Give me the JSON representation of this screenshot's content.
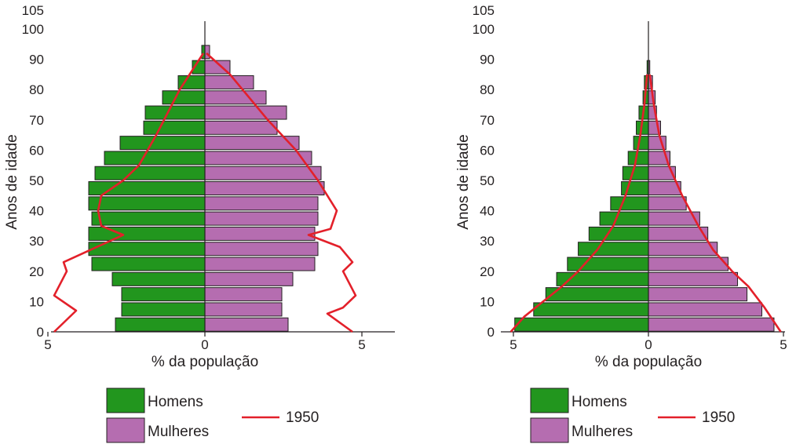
{
  "colors": {
    "men": "#22961e",
    "women": "#b56db0",
    "line_1950": "#e3202a",
    "axis": "#231f20"
  },
  "chart_data": [
    {
      "type": "bar",
      "orientation": "horizontal population pyramid",
      "xlabel": "% da população",
      "ylabel": "Anos de idade",
      "x_ticks": [
        "5",
        "0",
        "5"
      ],
      "y_ticks": [
        "0",
        "10",
        "20",
        "30",
        "40",
        "50",
        "60",
        "70",
        "80",
        "90",
        "100",
        "105"
      ],
      "xlim": [
        -5,
        5
      ],
      "ylim": [
        0,
        105
      ],
      "age_groups": [
        "0-4",
        "5-9",
        "10-14",
        "15-19",
        "20-24",
        "25-29",
        "30-34",
        "35-39",
        "40-44",
        "45-49",
        "50-54",
        "55-59",
        "60-64",
        "65-69",
        "70-74",
        "75-79",
        "80-84",
        "85-89",
        "90-94"
      ],
      "series": [
        {
          "name": "Homens",
          "values": [
            2.85,
            2.65,
            2.65,
            2.95,
            3.6,
            3.7,
            3.7,
            3.6,
            3.7,
            3.7,
            3.5,
            3.2,
            2.7,
            1.95,
            1.9,
            1.35,
            0.85,
            0.4,
            0.1
          ]
        },
        {
          "name": "Mulheres",
          "values": [
            2.65,
            2.45,
            2.45,
            2.8,
            3.5,
            3.6,
            3.5,
            3.6,
            3.6,
            3.8,
            3.7,
            3.4,
            3.0,
            2.3,
            2.6,
            1.95,
            1.55,
            0.8,
            0.15
          ]
        },
        {
          "name": "1950",
          "men_points": [
            [
              4.8,
              0
            ],
            [
              4.1,
              7
            ],
            [
              4.8,
              12
            ],
            [
              4.4,
              20
            ],
            [
              4.5,
              23
            ],
            [
              2.6,
              32
            ],
            [
              3.3,
              35
            ],
            [
              3.4,
              40
            ],
            [
              3.3,
              45
            ],
            [
              2.6,
              50
            ],
            [
              2.1,
              55
            ],
            [
              1.55,
              65
            ],
            [
              0.8,
              80
            ],
            [
              0.05,
              92
            ]
          ],
          "women_points": [
            [
              0.05,
              92
            ],
            [
              0.8,
              85
            ],
            [
              2.0,
              70
            ],
            [
              2.9,
              60
            ],
            [
              3.6,
              50
            ],
            [
              4.2,
              40
            ],
            [
              4.0,
              34
            ],
            [
              3.3,
              32
            ],
            [
              4.3,
              28
            ],
            [
              4.7,
              23
            ],
            [
              4.4,
              20
            ],
            [
              4.8,
              12
            ],
            [
              4.4,
              8
            ],
            [
              3.9,
              6
            ],
            [
              4.7,
              0
            ]
          ]
        }
      ],
      "legend": [
        "Homens",
        "Mulheres",
        "1950"
      ],
      "legend_position": "bottom"
    },
    {
      "type": "bar",
      "orientation": "horizontal population pyramid",
      "xlabel": "% da população",
      "ylabel": "Anos de idade",
      "x_ticks": [
        "5",
        "0",
        "5"
      ],
      "y_ticks": [
        "0",
        "10",
        "20",
        "30",
        "40",
        "50",
        "60",
        "70",
        "80",
        "90",
        "100",
        "105"
      ],
      "xlim": [
        -5,
        5
      ],
      "ylim": [
        0,
        105
      ],
      "age_groups": [
        "0-4",
        "5-9",
        "10-14",
        "15-19",
        "20-24",
        "25-29",
        "30-34",
        "35-39",
        "40-44",
        "45-49",
        "50-54",
        "55-59",
        "60-64",
        "65-69",
        "70-74",
        "75-79",
        "80-84",
        "85-89"
      ],
      "series": [
        {
          "name": "Homens",
          "values": [
            4.95,
            4.25,
            3.8,
            3.4,
            3.0,
            2.6,
            2.2,
            1.8,
            1.4,
            1.0,
            0.95,
            0.75,
            0.55,
            0.45,
            0.35,
            0.2,
            0.15,
            0.05
          ]
        },
        {
          "name": "Mulheres",
          "values": [
            4.65,
            4.2,
            3.65,
            3.3,
            2.95,
            2.55,
            2.2,
            1.9,
            1.4,
            1.2,
            1.0,
            0.8,
            0.65,
            0.45,
            0.3,
            0.25,
            0.15,
            0.05
          ]
        },
        {
          "name": "1950",
          "men_points": [
            [
              5.1,
              0
            ],
            [
              4.6,
              5
            ],
            [
              3.9,
              10
            ],
            [
              3.2,
              15
            ],
            [
              2.6,
              20
            ],
            [
              1.9,
              27
            ],
            [
              1.3,
              35
            ],
            [
              0.85,
              45
            ],
            [
              0.5,
              55
            ],
            [
              0.3,
              65
            ],
            [
              0.15,
              75
            ],
            [
              0.05,
              85
            ]
          ],
          "women_points": [
            [
              0.05,
              85
            ],
            [
              0.2,
              75
            ],
            [
              0.4,
              65
            ],
            [
              0.75,
              55
            ],
            [
              1.25,
              45
            ],
            [
              1.85,
              35
            ],
            [
              2.4,
              27
            ],
            [
              3.1,
              20
            ],
            [
              3.7,
              15
            ],
            [
              4.3,
              8
            ],
            [
              4.9,
              0
            ]
          ]
        }
      ],
      "legend": [
        "Homens",
        "Mulheres",
        "1950"
      ],
      "legend_position": "bottom"
    }
  ]
}
